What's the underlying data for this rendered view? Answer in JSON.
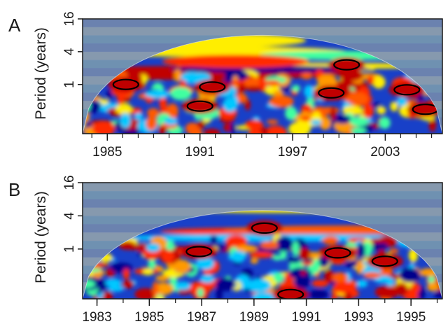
{
  "chart_data": [
    {
      "type": "heatmap",
      "panel_label": "A",
      "ylabel": "Period (years)",
      "y_scale": "log2",
      "yticks": [
        1,
        4,
        16
      ],
      "ytick_labels": [
        "1",
        "4",
        "16"
      ],
      "y_range": [
        0.125,
        16
      ],
      "x_range": [
        1983.4,
        2006.7
      ],
      "xticks": [
        1985,
        1991,
        1997,
        2003
      ],
      "xtick_labels": [
        "1985",
        "1991",
        "1997",
        "2003"
      ],
      "cone_peak_period": 8,
      "colors": {
        "low": "#00008b",
        "mid": "#00ff80",
        "high": "#c00000",
        "contour": "#000000"
      },
      "high_power_regions": [
        {
          "x": 1986.2,
          "period": 1.0
        },
        {
          "x": 1991.8,
          "period": 0.9
        },
        {
          "x": 1991.0,
          "period": 0.4
        },
        {
          "x": 1999.5,
          "period": 0.7
        },
        {
          "x": 2004.4,
          "period": 0.8
        },
        {
          "x": 2005.6,
          "period": 0.35
        },
        {
          "x": 2000.5,
          "period": 2.3
        }
      ]
    },
    {
      "type": "heatmap",
      "panel_label": "B",
      "ylabel": "Period (years)",
      "y_scale": "log2",
      "yticks": [
        1,
        4,
        16
      ],
      "ytick_labels": [
        "1",
        "4",
        "16"
      ],
      "y_range": [
        0.125,
        16
      ],
      "x_range": [
        1982.45,
        1996.2
      ],
      "xticks": [
        1983,
        1985,
        1987,
        1989,
        1991,
        1993,
        1995
      ],
      "xtick_labels": [
        "1983",
        "1985",
        "1987",
        "1989",
        "1991",
        "1993",
        "1995"
      ],
      "cone_peak_period": 5,
      "colors": {
        "low": "#00008b",
        "mid": "#00ff80",
        "high": "#c00000",
        "contour": "#000000"
      },
      "high_power_regions": [
        {
          "x": 1989.4,
          "period": 2.4
        },
        {
          "x": 1986.9,
          "period": 0.9
        },
        {
          "x": 1992.2,
          "period": 0.85
        },
        {
          "x": 1994.0,
          "period": 0.6
        },
        {
          "x": 1990.4,
          "period": 0.15
        }
      ]
    }
  ]
}
